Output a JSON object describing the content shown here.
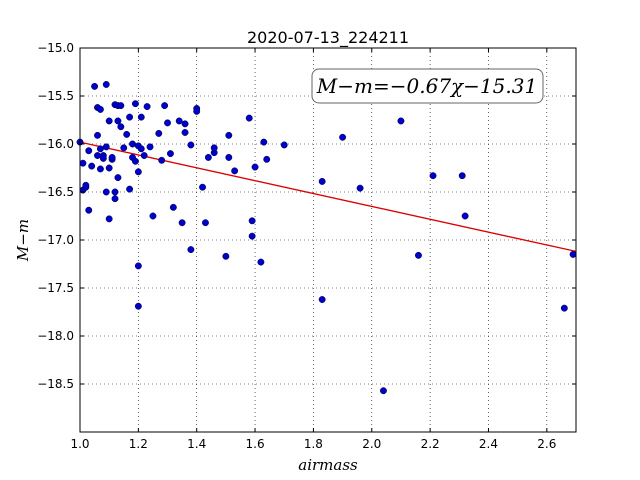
{
  "chart_data": {
    "type": "scatter",
    "title": "2020-07-13_224211",
    "xlabel": "airmass",
    "ylabel": "M−m",
    "xlim": [
      1.0,
      2.7
    ],
    "ylim": [
      -19.0,
      -15.0
    ],
    "y_inverted": false,
    "grid": true,
    "xticks": [
      1.0,
      1.2,
      1.4,
      1.6,
      1.8,
      2.0,
      2.2,
      2.4,
      2.6
    ],
    "xtick_labels": [
      "1.0",
      "1.2",
      "1.4",
      "1.6",
      "1.8",
      "2.0",
      "2.2",
      "2.4",
      "2.6"
    ],
    "yticks": [
      -15.0,
      -15.5,
      -16.0,
      -16.5,
      -17.0,
      -17.5,
      -18.0,
      -18.5
    ],
    "ytick_labels": [
      "−15.0",
      "−15.5",
      "−16.0",
      "−16.5",
      "−17.0",
      "−17.5",
      "−18.0",
      "−18.5"
    ],
    "annotation": "M−m=−0.67χ−15.31",
    "point_color": "#0000cc",
    "fit_color": "#dd0000",
    "fit": {
      "slope": -0.67,
      "intercept": -15.31,
      "x": [
        1.0,
        2.7
      ]
    },
    "points": [
      [
        1.0,
        -15.98
      ],
      [
        1.01,
        -16.2
      ],
      [
        1.01,
        -16.48
      ],
      [
        1.02,
        -16.45
      ],
      [
        1.02,
        -16.43
      ],
      [
        1.03,
        -16.69
      ],
      [
        1.03,
        -16.07
      ],
      [
        1.04,
        -16.23
      ],
      [
        1.05,
        -15.4
      ],
      [
        1.06,
        -15.62
      ],
      [
        1.06,
        -15.91
      ],
      [
        1.06,
        -16.12
      ],
      [
        1.07,
        -16.05
      ],
      [
        1.07,
        -16.26
      ],
      [
        1.07,
        -15.64
      ],
      [
        1.08,
        -16.12
      ],
      [
        1.08,
        -16.15
      ],
      [
        1.09,
        -15.38
      ],
      [
        1.09,
        -16.03
      ],
      [
        1.09,
        -16.5
      ],
      [
        1.1,
        -16.25
      ],
      [
        1.1,
        -16.78
      ],
      [
        1.1,
        -15.76
      ],
      [
        1.11,
        -16.16
      ],
      [
        1.11,
        -16.14
      ],
      [
        1.12,
        -16.5
      ],
      [
        1.12,
        -16.57
      ],
      [
        1.12,
        -15.59
      ],
      [
        1.13,
        -15.6
      ],
      [
        1.13,
        -16.35
      ],
      [
        1.13,
        -15.76
      ],
      [
        1.14,
        -15.82
      ],
      [
        1.14,
        -15.6
      ],
      [
        1.15,
        -16.04
      ],
      [
        1.16,
        -15.9
      ],
      [
        1.17,
        -16.47
      ],
      [
        1.17,
        -15.72
      ],
      [
        1.18,
        -16.14
      ],
      [
        1.18,
        -16.0
      ],
      [
        1.19,
        -16.18
      ],
      [
        1.19,
        -15.58
      ],
      [
        1.2,
        -16.29
      ],
      [
        1.2,
        -16.02
      ],
      [
        1.2,
        -17.27
      ],
      [
        1.2,
        -17.69
      ],
      [
        1.21,
        -15.72
      ],
      [
        1.21,
        -16.05
      ],
      [
        1.22,
        -16.12
      ],
      [
        1.23,
        -15.61
      ],
      [
        1.24,
        -16.03
      ],
      [
        1.25,
        -16.75
      ],
      [
        1.27,
        -15.89
      ],
      [
        1.28,
        -16.17
      ],
      [
        1.29,
        -15.6
      ],
      [
        1.3,
        -15.78
      ],
      [
        1.31,
        -16.1
      ],
      [
        1.32,
        -16.66
      ],
      [
        1.34,
        -15.76
      ],
      [
        1.35,
        -16.82
      ],
      [
        1.36,
        -15.79
      ],
      [
        1.36,
        -15.88
      ],
      [
        1.38,
        -17.1
      ],
      [
        1.38,
        -16.01
      ],
      [
        1.4,
        -15.63
      ],
      [
        1.4,
        -15.66
      ],
      [
        1.42,
        -16.45
      ],
      [
        1.43,
        -16.82
      ],
      [
        1.44,
        -16.14
      ],
      [
        1.46,
        -16.09
      ],
      [
        1.46,
        -16.04
      ],
      [
        1.5,
        -17.17
      ],
      [
        1.51,
        -15.91
      ],
      [
        1.51,
        -16.14
      ],
      [
        1.53,
        -16.28
      ],
      [
        1.58,
        -15.73
      ],
      [
        1.59,
        -16.96
      ],
      [
        1.59,
        -16.8
      ],
      [
        1.6,
        -16.24
      ],
      [
        1.62,
        -17.23
      ],
      [
        1.63,
        -15.98
      ],
      [
        1.64,
        -16.16
      ],
      [
        1.7,
        -16.01
      ],
      [
        1.83,
        -17.62
      ],
      [
        1.83,
        -16.39
      ],
      [
        1.9,
        -15.93
      ],
      [
        1.96,
        -16.46
      ],
      [
        2.04,
        -18.57
      ],
      [
        2.1,
        -15.76
      ],
      [
        2.16,
        -17.16
      ],
      [
        2.21,
        -16.33
      ],
      [
        2.31,
        -16.33
      ],
      [
        2.32,
        -16.75
      ],
      [
        2.66,
        -17.71
      ],
      [
        2.69,
        -17.15
      ]
    ]
  }
}
